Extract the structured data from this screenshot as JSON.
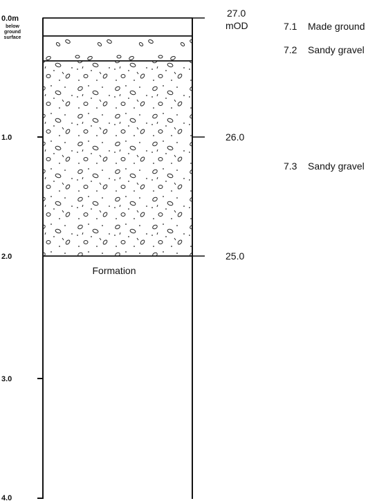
{
  "depth_axis": {
    "labels": [
      "0.0m",
      "1.0",
      "2.0",
      "3.0",
      "4.0"
    ],
    "note": [
      "below",
      "ground",
      "surface"
    ]
  },
  "level_axis": {
    "labels": [
      "27.0",
      "26.0",
      "25.0"
    ],
    "unit": "mOD"
  },
  "layers": [
    {
      "code": "7.1",
      "name": "Made ground"
    },
    {
      "code": "7.2",
      "name": "Sandy gravel"
    },
    {
      "code": "7.3",
      "name": "Sandy gravel"
    }
  ],
  "formation": "Formation"
}
